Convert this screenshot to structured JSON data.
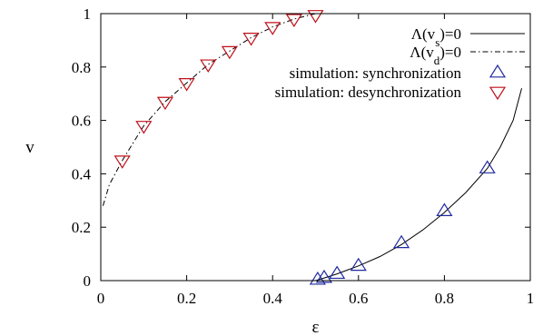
{
  "chart_data": {
    "type": "scatter",
    "xlabel": "ε",
    "ylabel": "v",
    "xlim": [
      0,
      1
    ],
    "ylim": [
      0,
      1
    ],
    "x_ticks": [
      "0",
      "0.2",
      "0.4",
      "0.6",
      "0.8",
      "1"
    ],
    "y_ticks": [
      "0",
      "0.2",
      "0.4",
      "0.6",
      "0.8",
      "1"
    ],
    "legend_position": "top-right",
    "series": [
      {
        "name": "Λ(v_s)=0",
        "kind": "line",
        "style": "solid",
        "color": "#000000",
        "x": [
          0.5,
          0.52,
          0.55,
          0.6,
          0.65,
          0.7,
          0.75,
          0.8,
          0.85,
          0.9,
          0.93,
          0.96,
          0.98
        ],
        "y": [
          0.0,
          0.01,
          0.025,
          0.055,
          0.09,
          0.135,
          0.19,
          0.255,
          0.33,
          0.42,
          0.5,
          0.6,
          0.72
        ]
      },
      {
        "name": "Λ(v_d)=0",
        "kind": "line",
        "style": "dash-dot",
        "color": "#000000",
        "x": [
          0.005,
          0.02,
          0.05,
          0.1,
          0.15,
          0.2,
          0.25,
          0.3,
          0.35,
          0.4,
          0.45,
          0.5
        ],
        "y": [
          0.28,
          0.36,
          0.45,
          0.58,
          0.67,
          0.74,
          0.81,
          0.86,
          0.91,
          0.95,
          0.98,
          1.0
        ]
      },
      {
        "name": "simulation: synchronization",
        "kind": "marker",
        "marker": "triangle-up",
        "color": "#1f2aa0",
        "x": [
          0.505,
          0.52,
          0.55,
          0.6,
          0.7,
          0.8,
          0.9
        ],
        "y": [
          0.003,
          0.01,
          0.025,
          0.055,
          0.14,
          0.26,
          0.42
        ]
      },
      {
        "name": "simulation: desynchronization",
        "kind": "marker",
        "marker": "triangle-down",
        "color": "#c0101a",
        "x": [
          0.05,
          0.1,
          0.15,
          0.2,
          0.25,
          0.3,
          0.35,
          0.4,
          0.45,
          0.5
        ],
        "y": [
          0.45,
          0.58,
          0.67,
          0.74,
          0.81,
          0.86,
          0.91,
          0.95,
          0.98,
          0.995
        ]
      }
    ]
  }
}
